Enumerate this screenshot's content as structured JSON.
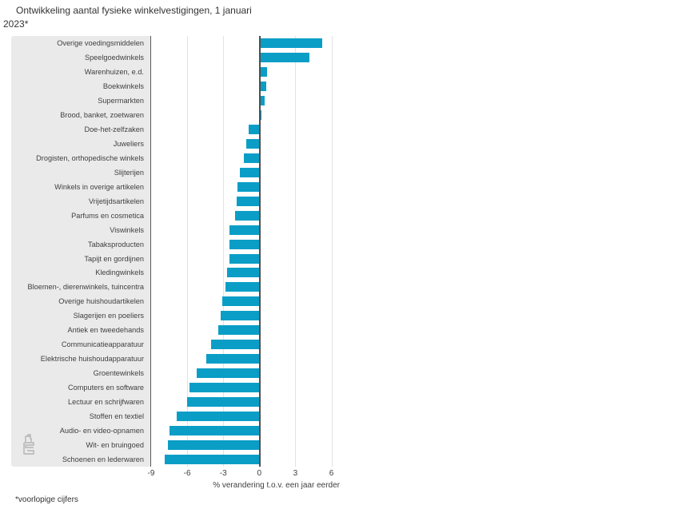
{
  "title_lines": [
    "Ontwikkeling aantal fysieke winkelvestigingen, 1 januari",
    "2023*"
  ],
  "footnote": "*voorlopige cijfers",
  "logo": "cbs-logo",
  "colors": {
    "bar": "#0a9ec7",
    "label_panel": "#eaeaea",
    "axis_line": "#4f4f4f",
    "gridline": "#e2e2e2",
    "text": "#404040"
  },
  "chart_data": {
    "type": "bar",
    "orientation": "horizontal",
    "title": "Ontwikkeling aantal fysieke winkelvestigingen, 1 januari 2023*",
    "xlabel": "% verandering t.o.v. een jaar eerder",
    "ylabel": "",
    "xticks": [
      -9,
      -6,
      -3,
      0,
      3,
      6
    ],
    "xlim": [
      -9,
      7.5
    ],
    "grid": true,
    "legend": false,
    "categories": [
      "Overige voedingsmiddelen",
      "Speelgoedwinkels",
      "Warenhuizen, e.d.",
      "Boekwinkels",
      "Supermarkten",
      "Brood, banket, zoetwaren",
      "Doe-het-zelfzaken",
      "Juweliers",
      "Drogisten, orthopedische winkels",
      "Slijterijen",
      "Winkels in overige artikelen",
      "Vrijetijdsartikelen",
      "Parfums en cosmetica",
      "Viswinkels",
      "Tabaksproducten",
      "Tapijt en gordijnen",
      "Kledingwinkels",
      "Bloemen-, dierenwinkels, tuincentra",
      "Overige huishoudartikelen",
      "Slagerijen en poeliers",
      "Antiek en tweedehands",
      "Communicatieapparatuur",
      "Elektrische huishoudapparatuur",
      "Groentewinkels",
      "Computers en software",
      "Lectuur en schrijfwaren",
      "Stoffen en textiel",
      "Audio- en video-opnamen",
      "Wit- en bruingoed",
      "Schoenen en lederwaren"
    ],
    "values": [
      5.2,
      4.1,
      0.6,
      0.5,
      0.4,
      0.1,
      -0.9,
      -1.1,
      -1.3,
      -1.6,
      -1.8,
      -1.9,
      -2.0,
      -2.5,
      -2.5,
      -2.5,
      -2.7,
      -2.8,
      -3.1,
      -3.2,
      -3.4,
      -4.0,
      -4.4,
      -5.2,
      -5.8,
      -6.0,
      -6.9,
      -7.5,
      -7.6,
      -7.9
    ]
  }
}
